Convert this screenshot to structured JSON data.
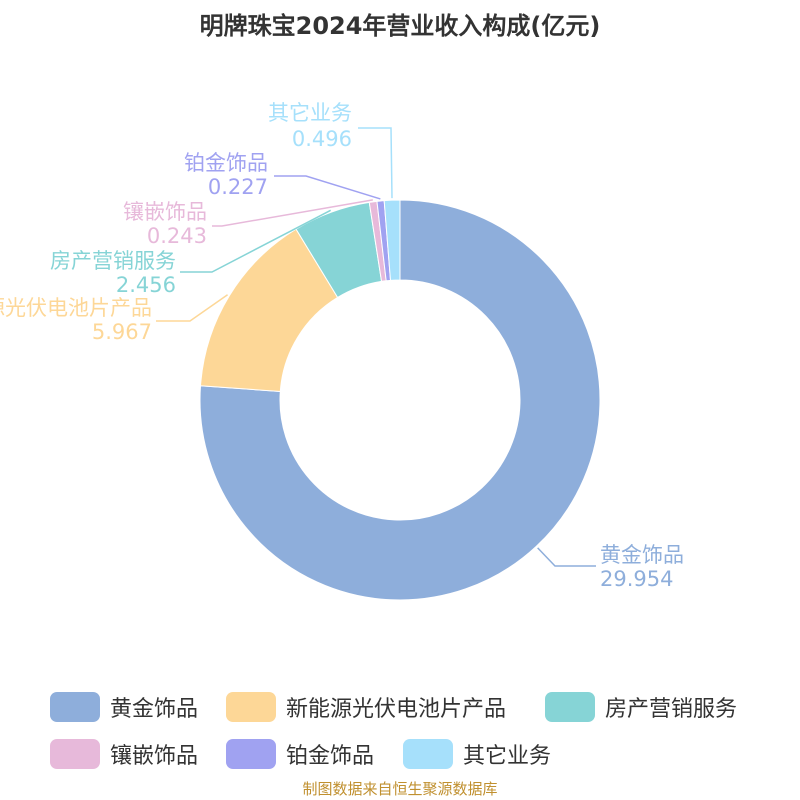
{
  "chart_data": {
    "type": "pie",
    "variant": "donut",
    "title": "明牌珠宝2024年营业收入构成(亿元)",
    "unit": "亿元",
    "legend_placement": "bottom",
    "slices": [
      {
        "name": "黄金饰品",
        "value": 29.954,
        "value_label": "29.954",
        "color": "#8eaedb"
      },
      {
        "name": "新能源光伏电池片产品",
        "value": 5.967,
        "value_label": "5.967",
        "color": "#fdd797"
      },
      {
        "name": "房产营销服务",
        "value": 2.456,
        "value_label": "2.456",
        "color": "#86d4d6"
      },
      {
        "name": "镶嵌饰品",
        "value": 0.243,
        "value_label": "0.243",
        "color": "#e7b9da"
      },
      {
        "name": "铂金饰品",
        "value": 0.227,
        "value_label": "0.227",
        "color": "#a0a2f1"
      },
      {
        "name": "其它业务",
        "value": 0.496,
        "value_label": "0.496",
        "color": "#a6e0fb"
      }
    ]
  },
  "source": "制图数据来自恒生聚源数据库"
}
